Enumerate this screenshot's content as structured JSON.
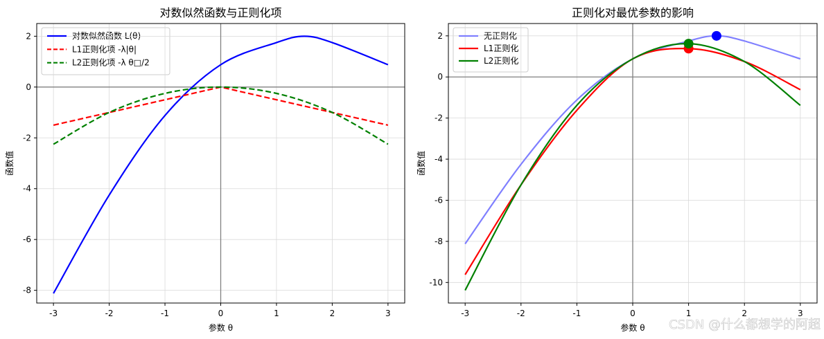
{
  "watermark": "CSDN @什么都想学的阿超",
  "chart_data": [
    {
      "type": "line",
      "title": "对数似然函数与正则化项",
      "xlabel": "参数 θ",
      "ylabel": "函数值",
      "xlim": [
        -3.3,
        3.3
      ],
      "ylim": [
        -8.5,
        2.5
      ],
      "xticks": [
        -3,
        -2,
        -1,
        0,
        1,
        2,
        3
      ],
      "yticks": [
        -8,
        -6,
        -4,
        -2,
        0,
        2
      ],
      "grid": true,
      "legend": "top-left",
      "reference_lines": {
        "x0": true,
        "y0": true
      },
      "series": [
        {
          "name": "对数似然函数 L(θ)",
          "color": "#0000ff",
          "dash": "solid",
          "x": [
            -3,
            -2,
            -1,
            0,
            1,
            1.5,
            2,
            3
          ],
          "y": [
            -8.12,
            -4.25,
            -1.12,
            0.88,
            1.75,
            2.0,
            1.75,
            0.88
          ]
        },
        {
          "name": "L1正则化项 -λ|θ|",
          "color": "#ff0000",
          "dash": "dashed",
          "x": [
            -3,
            -2,
            -1,
            0,
            1,
            2,
            3
          ],
          "y": [
            -1.5,
            -1.0,
            -0.5,
            0,
            -0.5,
            -1.0,
            -1.5
          ]
        },
        {
          "name": "L2正则化项 -λ θ□/2",
          "color": "#008000",
          "dash": "dashed",
          "x": [
            -3,
            -2,
            -1,
            0,
            1,
            2,
            3
          ],
          "y": [
            -2.25,
            -1.0,
            -0.25,
            0,
            -0.25,
            -1.0,
            -2.25
          ]
        }
      ]
    },
    {
      "type": "line",
      "title": "正则化对最优参数的影响",
      "xlabel": "参数 θ",
      "ylabel": "函数值",
      "xlim": [
        -3.3,
        3.3
      ],
      "ylim": [
        -11.0,
        2.6
      ],
      "xticks": [
        -3,
        -2,
        -1,
        0,
        1,
        2,
        3
      ],
      "yticks": [
        -10,
        -8,
        -6,
        -4,
        -2,
        0,
        2
      ],
      "grid": true,
      "legend": "top-left",
      "reference_lines": {
        "x0": true,
        "y0": true
      },
      "series": [
        {
          "name": "无正则化",
          "color": "#7f7fff",
          "dash": "solid",
          "x": [
            -3,
            -2,
            -1,
            0,
            1,
            1.5,
            2,
            3
          ],
          "y": [
            -8.12,
            -4.25,
            -1.12,
            0.88,
            1.75,
            2.0,
            1.75,
            0.88
          ]
        },
        {
          "name": "L1正则化",
          "color": "#ff0000",
          "dash": "solid",
          "x": [
            -3,
            -2,
            -1,
            0,
            1,
            2,
            3
          ],
          "y": [
            -9.62,
            -5.25,
            -1.62,
            0.88,
            1.38,
            0.75,
            -0.62
          ]
        },
        {
          "name": "L2正则化",
          "color": "#008000",
          "dash": "solid",
          "x": [
            -3,
            -2,
            -1,
            0,
            1,
            2,
            3
          ],
          "y": [
            -10.38,
            -5.25,
            -1.38,
            0.88,
            1.62,
            0.75,
            -1.38
          ]
        }
      ],
      "markers": [
        {
          "x": 1.5,
          "y": 2.0,
          "color": "#0000ff"
        },
        {
          "x": 1.0,
          "y": 1.38,
          "color": "#ff0000"
        },
        {
          "x": 1.0,
          "y": 1.62,
          "color": "#008000"
        }
      ]
    }
  ]
}
